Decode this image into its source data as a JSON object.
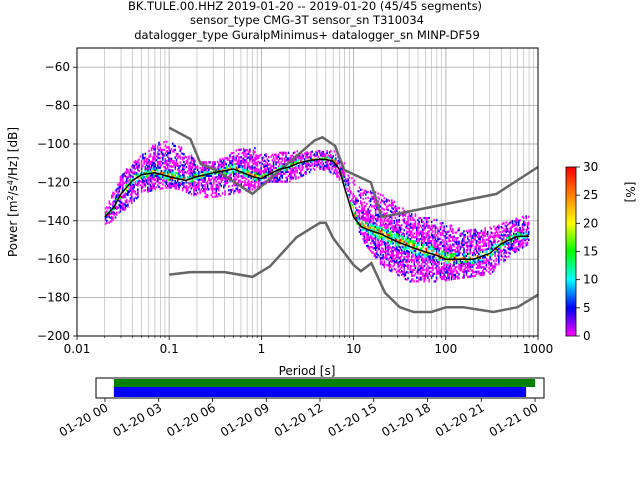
{
  "title_lines": [
    "BK.TULE.00.HHZ   2019-01-20 -- 2019-01-20  (45/45 segments)",
    "sensor_type CMG-3T sensor_sn T310034",
    "datalogger_type GuralpMinimus+ datalogger_sn MINP-DF59"
  ],
  "colors": {
    "noise_model": "#666666",
    "mean_curve": "#000000",
    "coverage_top": "#008000",
    "coverage_bottom": "#0000ff",
    "grid": "#b0b0b0"
  },
  "chart_data": [
    {
      "type": "heatmap",
      "title": "",
      "xlabel": "Period [s]",
      "ylabel_parts": {
        "pre": "Power [m",
        "sup1": "2",
        "mid1": "/s",
        "sup2": "4",
        "post": "/Hz] [dB]"
      },
      "xscale": "log",
      "xlim": [
        0.01,
        1000
      ],
      "ylim": [
        -200,
        -50
      ],
      "xticks": [
        0.01,
        0.1,
        1,
        10,
        100,
        1000
      ],
      "xtick_labels": [
        "0.01",
        "0.1",
        "1",
        "10",
        "100",
        "1000"
      ],
      "yticks": [
        -200,
        -180,
        -160,
        -140,
        -120,
        -100,
        -80,
        -60
      ],
      "ytick_labels": [
        "−200",
        "−180",
        "−160",
        "−140",
        "−120",
        "−100",
        "−80",
        "−60"
      ],
      "grid": true,
      "colorbar": {
        "label": "[%]",
        "range": [
          0,
          30
        ],
        "ticks": [
          0,
          5,
          10,
          15,
          20,
          25,
          30
        ],
        "tick_labels": [
          "0",
          "5",
          "10",
          "15",
          "20",
          "25",
          "30"
        ],
        "cmap": [
          "#ff00ff",
          "#0000ff",
          "#00ffff",
          "#00ff00",
          "#ffff00",
          "#ff8000",
          "#ff0000"
        ]
      },
      "series": [
        {
          "kind": "noise_model_high",
          "x": [
            0.1,
            0.17,
            0.22,
            0.32,
            0.8,
            3.8,
            4.6,
            6.3,
            7.9,
            15.4,
            20,
            354.8,
            1000
          ],
          "y": [
            -91.5,
            -97.4,
            -110.5,
            -113.5,
            -126,
            -98,
            -96.5,
            -101,
            -113.5,
            -120,
            -138,
            -126,
            -112
          ]
        },
        {
          "kind": "noise_model_low",
          "x": [
            0.1,
            0.17,
            0.4,
            0.8,
            1.24,
            2.4,
            4.3,
            5,
            6,
            10,
            12,
            15.6,
            21.9,
            31.6,
            45,
            70,
            101,
            154,
            328,
            600,
            1000
          ],
          "y": [
            -168,
            -166.7,
            -166.7,
            -169.2,
            -163.7,
            -148.6,
            -141.1,
            -141.1,
            -149,
            -163,
            -166.2,
            -162.1,
            -177.5,
            -185,
            -187.5,
            -187.5,
            -185,
            -185,
            -187.5,
            -185,
            -178.5
          ]
        },
        {
          "kind": "mean",
          "x": [
            0.02,
            0.025,
            0.03,
            0.04,
            0.05,
            0.07,
            0.1,
            0.15,
            0.2,
            0.3,
            0.5,
            0.8,
            1.0,
            1.3,
            1.6,
            2.0,
            2.5,
            3.0,
            4.0,
            5.0,
            6.0,
            7.0,
            8.0,
            10,
            12,
            15,
            20,
            30,
            50,
            80,
            100,
            150,
            200,
            300,
            400,
            600,
            800
          ],
          "y": [
            -138,
            -133,
            -126,
            -119,
            -116,
            -115,
            -117,
            -119,
            -117,
            -115,
            -113,
            -117,
            -118,
            -115,
            -113,
            -112,
            -110,
            -109,
            -108,
            -108,
            -109,
            -113,
            -123,
            -138,
            -143,
            -145,
            -147,
            -151,
            -155,
            -158,
            -160,
            -160,
            -160,
            -157,
            -152,
            -148,
            -148
          ]
        },
        {
          "kind": "density_upper",
          "x": [
            0.02,
            0.03,
            0.05,
            0.07,
            0.1,
            0.13,
            0.2,
            0.3,
            0.5,
            0.8,
            1.2,
            2.0,
            3.0,
            4.0,
            5.0,
            6.0,
            8.0,
            12,
            20,
            40,
            80,
            150,
            300,
            500,
            800
          ],
          "y": [
            -134,
            -116,
            -106,
            -100,
            -98,
            -100,
            -110,
            -110,
            -104,
            -102,
            -106,
            -104,
            -104,
            -104,
            -104,
            -104,
            -110,
            -124,
            -126,
            -136,
            -140,
            -145,
            -144,
            -140,
            -137
          ]
        },
        {
          "kind": "density_lower",
          "x": [
            0.02,
            0.03,
            0.05,
            0.07,
            0.1,
            0.13,
            0.2,
            0.3,
            0.5,
            0.8,
            1.2,
            2.0,
            3.0,
            4.0,
            5.0,
            6.0,
            8.0,
            12,
            20,
            40,
            80,
            150,
            300,
            500,
            800
          ],
          "y": [
            -143,
            -136,
            -126,
            -124,
            -123,
            -124,
            -128,
            -128,
            -126,
            -124,
            -120,
            -120,
            -116,
            -113,
            -114,
            -116,
            -122,
            -150,
            -164,
            -172,
            -172,
            -170,
            -168,
            -158,
            -152
          ]
        }
      ]
    },
    {
      "type": "timeline",
      "tick_labels": [
        "01-20 00",
        "01-20 03",
        "01-20 06",
        "01-20 09",
        "01-20 12",
        "01-20 15",
        "01-20 18",
        "01-20 21",
        "01-21 00"
      ],
      "tick_hours": [
        0,
        3,
        6,
        9,
        12,
        15,
        18,
        21,
        24
      ],
      "xlim_hours": [
        -0.5,
        24.5
      ],
      "bars": [
        {
          "kind": "data_coverage",
          "start_hour": 0.5,
          "end_hour": 24.0
        },
        {
          "kind": "psd_coverage",
          "start_hour": 0.5,
          "end_hour": 23.5
        }
      ]
    }
  ]
}
